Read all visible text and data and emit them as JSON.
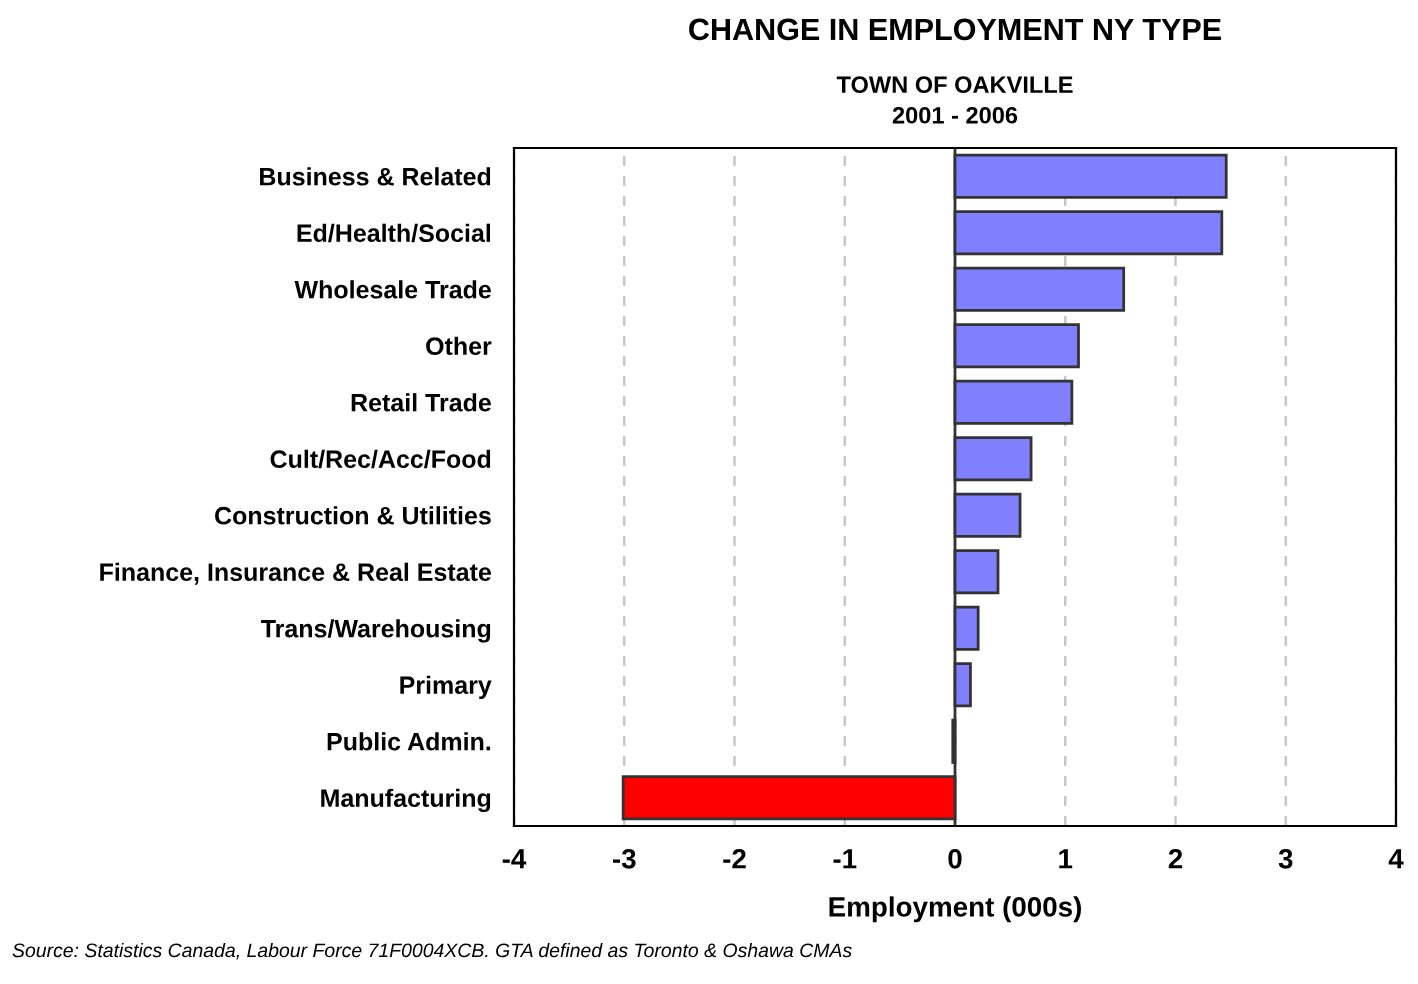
{
  "chart_data": {
    "type": "bar",
    "orientation": "horizontal",
    "title": "CHANGE IN EMPLOYMENT NY TYPE",
    "subtitle": "TOWN OF OAKVILLE\n2001 - 2006",
    "xlabel": "Employment (000s)",
    "categories": [
      "Business & Related",
      "Ed/Health/Social",
      "Wholesale Trade",
      "Other",
      "Retail Trade",
      "Cult/Rec/Acc/Food",
      "Construction & Utilities",
      "Finance, Insurance & Real Estate",
      "Trans/Warehousing",
      "Primary",
      "Public Admin.",
      "Manufacturing"
    ],
    "values": [
      2.46,
      2.42,
      1.53,
      1.12,
      1.06,
      0.69,
      0.59,
      0.39,
      0.21,
      0.14,
      -0.02,
      -3.01
    ],
    "colors": [
      "#8080ff",
      "#8080ff",
      "#8080ff",
      "#8080ff",
      "#8080ff",
      "#8080ff",
      "#8080ff",
      "#8080ff",
      "#8080ff",
      "#8080ff",
      "#8080ff",
      "#ff0000"
    ],
    "xlim": [
      -4,
      4
    ],
    "xticks": [
      -4,
      -3,
      -2,
      -1,
      0,
      1,
      2,
      3,
      4
    ],
    "grid": "x",
    "annotations": [
      "Source: Statistics Canada, Labour Force 71F0004XCB. GTA defined as Toronto & Oshawa CMAs"
    ]
  }
}
